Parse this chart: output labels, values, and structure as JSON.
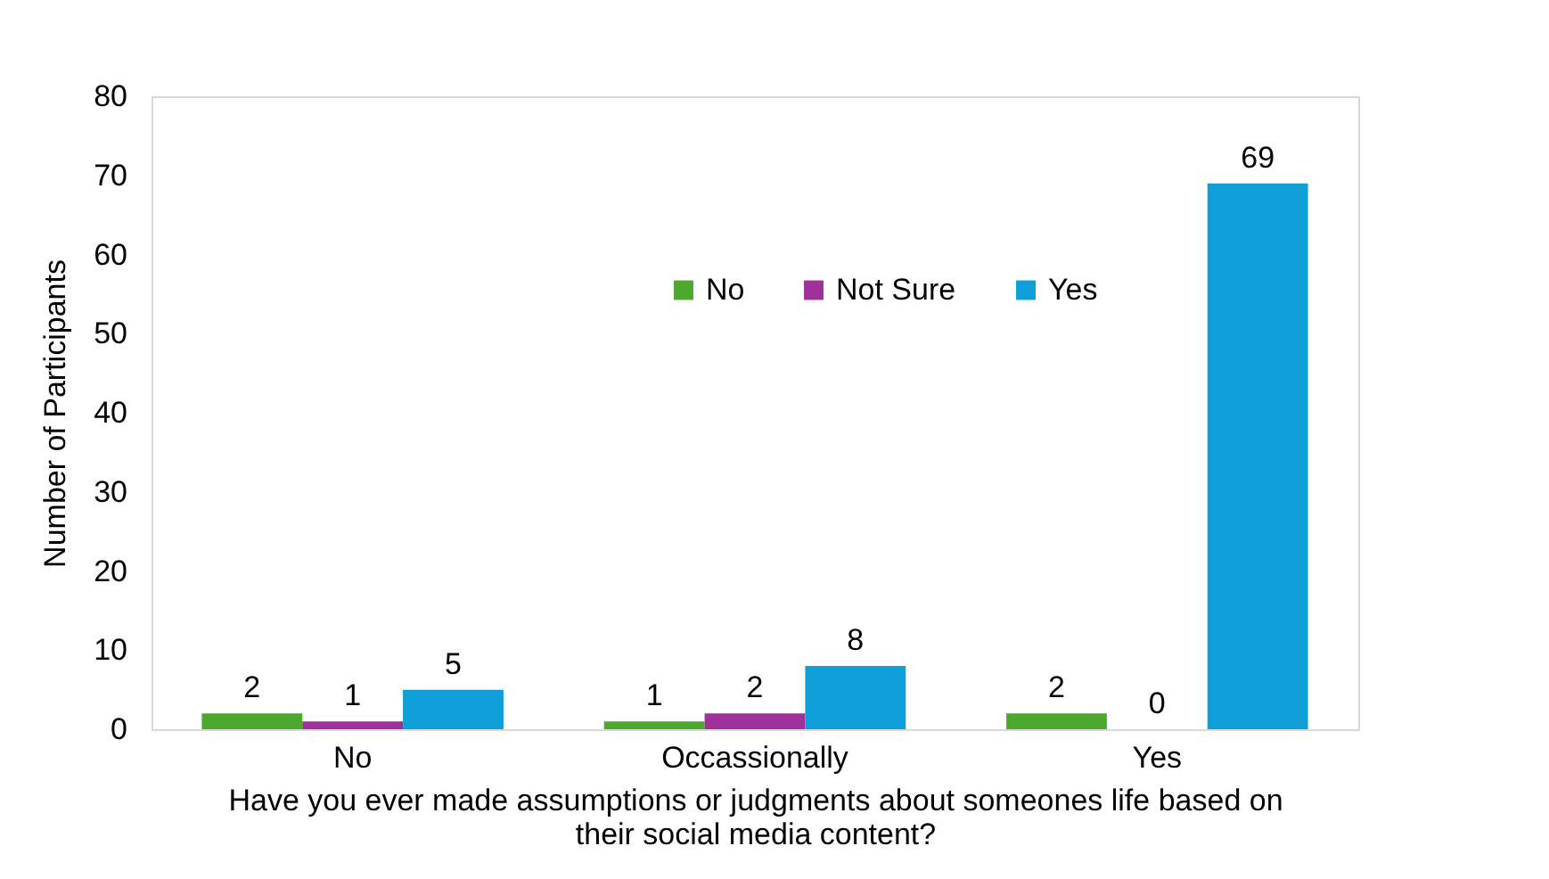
{
  "chart_data": {
    "type": "bar",
    "xlabel": "Have you ever made assumptions or judgments about someones life based on their social media content?",
    "ylabel": "Number of Participants",
    "categories": [
      "No",
      "Occassionally",
      "Yes"
    ],
    "series": [
      {
        "name": "No",
        "color": "#4ea72e",
        "values": [
          2,
          1,
          2
        ]
      },
      {
        "name": "Not Sure",
        "color": "#a0309a",
        "values": [
          1,
          2,
          0
        ]
      },
      {
        "name": "Yes",
        "color": "#0e9fd8",
        "values": [
          5,
          8,
          69
        ]
      }
    ],
    "ylim": [
      0,
      80
    ],
    "yticks": [
      0,
      10,
      20,
      30,
      40,
      50,
      60,
      70,
      80
    ],
    "grid": false,
    "legend": "top",
    "data_labels": true
  }
}
